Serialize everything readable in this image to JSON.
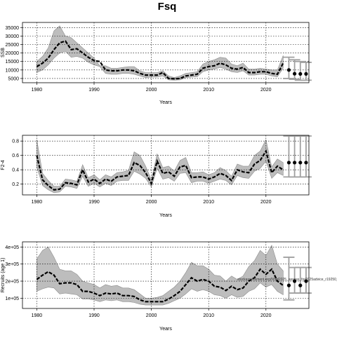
{
  "figure": {
    "title": "Fsq",
    "colors": {
      "band": "#bdbdbd",
      "band_edge": "#8c8c8c",
      "line": "#000000",
      "grid": "#000000",
      "forecast_bar": "#a0a0a0"
    }
  },
  "chart_data": [
    {
      "type": "line",
      "id": "ssb",
      "ylabel": "SSB",
      "xlabel": "Years",
      "xlim": [
        1977.5,
        2027.5
      ],
      "ylim": [
        2500,
        38000
      ],
      "grid": true,
      "x_ticks": [
        1980,
        1990,
        2000,
        2010,
        2020
      ],
      "x_tick_labels": [
        "1980",
        "1990",
        "2000",
        "2010",
        "2020"
      ],
      "y_ticks": [
        5000,
        10000,
        15000,
        20000,
        25000,
        30000,
        35000
      ],
      "y_tick_labels": [
        "5000",
        "10000",
        "15000",
        "20000",
        "25000",
        "30000",
        "35000"
      ],
      "series": [
        {
          "x": [
            1980,
            1981,
            1982,
            1983,
            1984,
            1985,
            1986,
            1987,
            1988,
            1989,
            1990,
            1991,
            1992,
            1993,
            1994,
            1995,
            1996,
            1997,
            1998,
            1999,
            2000,
            2001,
            2002,
            2003,
            2004,
            2005,
            2006,
            2007,
            2008,
            2009,
            2010,
            2011,
            2012,
            2013,
            2014,
            2015,
            2016,
            2017,
            2018,
            2019,
            2020,
            2021,
            2022,
            2023
          ],
          "median": [
            12000,
            14000,
            17000,
            22000,
            26000,
            27000,
            22000,
            22500,
            20000,
            17500,
            15500,
            15000,
            10000,
            9500,
            9500,
            10000,
            10000,
            9500,
            8000,
            7000,
            7000,
            7000,
            8500,
            5000,
            4800,
            5000,
            6500,
            7000,
            7500,
            11000,
            12000,
            12500,
            14000,
            13000,
            11000,
            10500,
            11500,
            8500,
            8500,
            9000,
            9000,
            8000,
            7500,
            14000
          ],
          "upper": [
            15000,
            18000,
            23000,
            33000,
            36000,
            30000,
            29000,
            26000,
            23000,
            20000,
            17000,
            12500,
            12500,
            11000,
            11000,
            11500,
            12000,
            12000,
            9500,
            8500,
            8500,
            8500,
            9500,
            6500,
            5600,
            6500,
            8000,
            8500,
            9000,
            13500,
            15000,
            16000,
            17500,
            17000,
            13500,
            12500,
            14000,
            10500,
            10500,
            11000,
            10500,
            10000,
            10000,
            18500
          ],
          "lower": [
            8500,
            10000,
            13000,
            17000,
            20000,
            21000,
            17500,
            18000,
            17000,
            14500,
            13000,
            12000,
            8000,
            7500,
            7500,
            8000,
            8000,
            7500,
            6500,
            5500,
            5800,
            5800,
            6500,
            4200,
            4000,
            4200,
            5500,
            5800,
            6000,
            9000,
            10000,
            10500,
            11500,
            10500,
            9000,
            8500,
            9500,
            7000,
            7000,
            7500,
            7500,
            6500,
            6000,
            11000
          ]
        }
      ],
      "forecast": {
        "x": [
          2024,
          2025,
          2026,
          2027
        ],
        "median": [
          10000,
          7800,
          7700,
          7700
        ],
        "upper": [
          17500,
          16000,
          15000,
          14500
        ],
        "lower": [
          5000,
          4500,
          4000,
          4000
        ]
      }
    },
    {
      "type": "line",
      "id": "fbar",
      "ylabel": "F2-4",
      "xlabel": "Years",
      "xlim": [
        1977.5,
        2027.5
      ],
      "ylim": [
        0.05,
        0.88
      ],
      "grid": true,
      "x_ticks": [
        1980,
        1990,
        2000,
        2010,
        2020
      ],
      "x_tick_labels": [
        "1980",
        "1990",
        "2000",
        "2010",
        "2020"
      ],
      "y_ticks": [
        0.2,
        0.4,
        0.6,
        0.8
      ],
      "y_tick_labels": [
        "0.2",
        "0.4",
        "0.6",
        "0.8"
      ],
      "series": [
        {
          "x": [
            1980,
            1981,
            1982,
            1983,
            1984,
            1985,
            1986,
            1987,
            1988,
            1989,
            1990,
            1991,
            1992,
            1993,
            1994,
            1995,
            1996,
            1997,
            1998,
            1999,
            2000,
            2001,
            2002,
            2003,
            2004,
            2005,
            2006,
            2007,
            2008,
            2009,
            2010,
            2011,
            2012,
            2013,
            2014,
            2015,
            2016,
            2017,
            2018,
            2019,
            2020,
            2021,
            2022,
            2023
          ],
          "median": [
            0.6,
            0.26,
            0.18,
            0.12,
            0.13,
            0.22,
            0.21,
            0.19,
            0.4,
            0.23,
            0.27,
            0.21,
            0.27,
            0.24,
            0.3,
            0.31,
            0.32,
            0.5,
            0.46,
            0.36,
            0.21,
            0.52,
            0.35,
            0.37,
            0.31,
            0.44,
            0.46,
            0.29,
            0.3,
            0.3,
            0.27,
            0.3,
            0.35,
            0.32,
            0.25,
            0.4,
            0.37,
            0.36,
            0.48,
            0.53,
            0.66,
            0.36,
            0.45,
            0.4
          ],
          "upper": [
            0.82,
            0.35,
            0.25,
            0.17,
            0.17,
            0.27,
            0.26,
            0.24,
            0.47,
            0.29,
            0.33,
            0.26,
            0.33,
            0.3,
            0.36,
            0.37,
            0.39,
            0.65,
            0.6,
            0.45,
            0.26,
            0.62,
            0.43,
            0.45,
            0.38,
            0.53,
            0.57,
            0.36,
            0.36,
            0.37,
            0.33,
            0.36,
            0.43,
            0.39,
            0.31,
            0.48,
            0.45,
            0.45,
            0.6,
            0.66,
            0.82,
            0.44,
            0.55,
            0.5
          ],
          "lower": [
            0.44,
            0.18,
            0.12,
            0.08,
            0.09,
            0.17,
            0.16,
            0.14,
            0.31,
            0.17,
            0.21,
            0.16,
            0.21,
            0.18,
            0.24,
            0.25,
            0.25,
            0.38,
            0.34,
            0.28,
            0.16,
            0.42,
            0.27,
            0.29,
            0.24,
            0.35,
            0.36,
            0.22,
            0.24,
            0.24,
            0.21,
            0.24,
            0.27,
            0.25,
            0.19,
            0.32,
            0.29,
            0.28,
            0.38,
            0.42,
            0.52,
            0.28,
            0.36,
            0.32
          ]
        }
      ],
      "forecast": {
        "x": [
          2024,
          2025,
          2026,
          2027
        ],
        "median": [
          0.5,
          0.5,
          0.5,
          0.5
        ],
        "upper": [
          0.87,
          0.87,
          0.87,
          0.87
        ],
        "lower": [
          0.3,
          0.3,
          0.3,
          0.3
        ]
      }
    },
    {
      "type": "line",
      "id": "recruits",
      "ylabel": "Recruits (age 1)",
      "xlabel": "Years",
      "xlim": [
        1977.5,
        2027.5
      ],
      "ylim": [
        40000,
        430000
      ],
      "grid": true,
      "x_ticks": [
        1980,
        1990,
        2000,
        2010,
        2020
      ],
      "x_tick_labels": [
        "1980",
        "1990",
        "2000",
        "2010",
        "2020"
      ],
      "y_ticks": [
        100000,
        200000,
        300000,
        400000
      ],
      "y_tick_labels": [
        "1e+05",
        "2e+05",
        "3e+05",
        "4e+05"
      ],
      "annotation": "stockassessment.org/NSH2025_assess_for2025advice_r19250_g8.1ce",
      "series": [
        {
          "x": [
            1980,
            1981,
            1982,
            1983,
            1984,
            1985,
            1986,
            1987,
            1988,
            1989,
            1990,
            1991,
            1992,
            1993,
            1994,
            1995,
            1996,
            1997,
            1998,
            1999,
            2000,
            2001,
            2002,
            2003,
            2004,
            2005,
            2006,
            2007,
            2008,
            2009,
            2010,
            2011,
            2012,
            2013,
            2014,
            2015,
            2016,
            2017,
            2018,
            2019,
            2020,
            2021,
            2022,
            2023
          ],
          "median": [
            210000,
            235000,
            255000,
            235000,
            185000,
            190000,
            190000,
            180000,
            140000,
            140000,
            130000,
            115000,
            130000,
            125000,
            130000,
            115000,
            115000,
            110000,
            90000,
            80000,
            80000,
            80000,
            80000,
            95000,
            115000,
            140000,
            180000,
            220000,
            200000,
            210000,
            200000,
            170000,
            165000,
            145000,
            170000,
            150000,
            160000,
            200000,
            220000,
            270000,
            240000,
            270000,
            200000,
            175000
          ],
          "upper": [
            330000,
            380000,
            400000,
            340000,
            270000,
            260000,
            260000,
            240000,
            200000,
            190000,
            180000,
            160000,
            180000,
            170000,
            175000,
            160000,
            160000,
            150000,
            125000,
            100000,
            100000,
            105000,
            115000,
            140000,
            165000,
            200000,
            250000,
            310000,
            290000,
            290000,
            270000,
            235000,
            230000,
            200000,
            230000,
            210000,
            230000,
            285000,
            320000,
            380000,
            350000,
            410000,
            300000,
            260000
          ],
          "lower": [
            140000,
            155000,
            165000,
            160000,
            125000,
            130000,
            125000,
            120000,
            95000,
            95000,
            90000,
            80000,
            90000,
            85000,
            90000,
            80000,
            80000,
            75000,
            65000,
            60000,
            60000,
            60000,
            60000,
            70000,
            85000,
            100000,
            125000,
            155000,
            140000,
            150000,
            140000,
            120000,
            115000,
            100000,
            120000,
            105000,
            110000,
            140000,
            155000,
            190000,
            165000,
            180000,
            140000,
            120000
          ]
        }
      ],
      "forecast": {
        "x": [
          2024,
          2025,
          2026,
          2027
        ],
        "median": [
          175000,
          200000,
          175000,
          200000
        ],
        "upper": [
          340000,
          280000,
          280000,
          280000
        ],
        "lower": [
          90000,
          130000,
          130000,
          130000
        ]
      }
    }
  ]
}
